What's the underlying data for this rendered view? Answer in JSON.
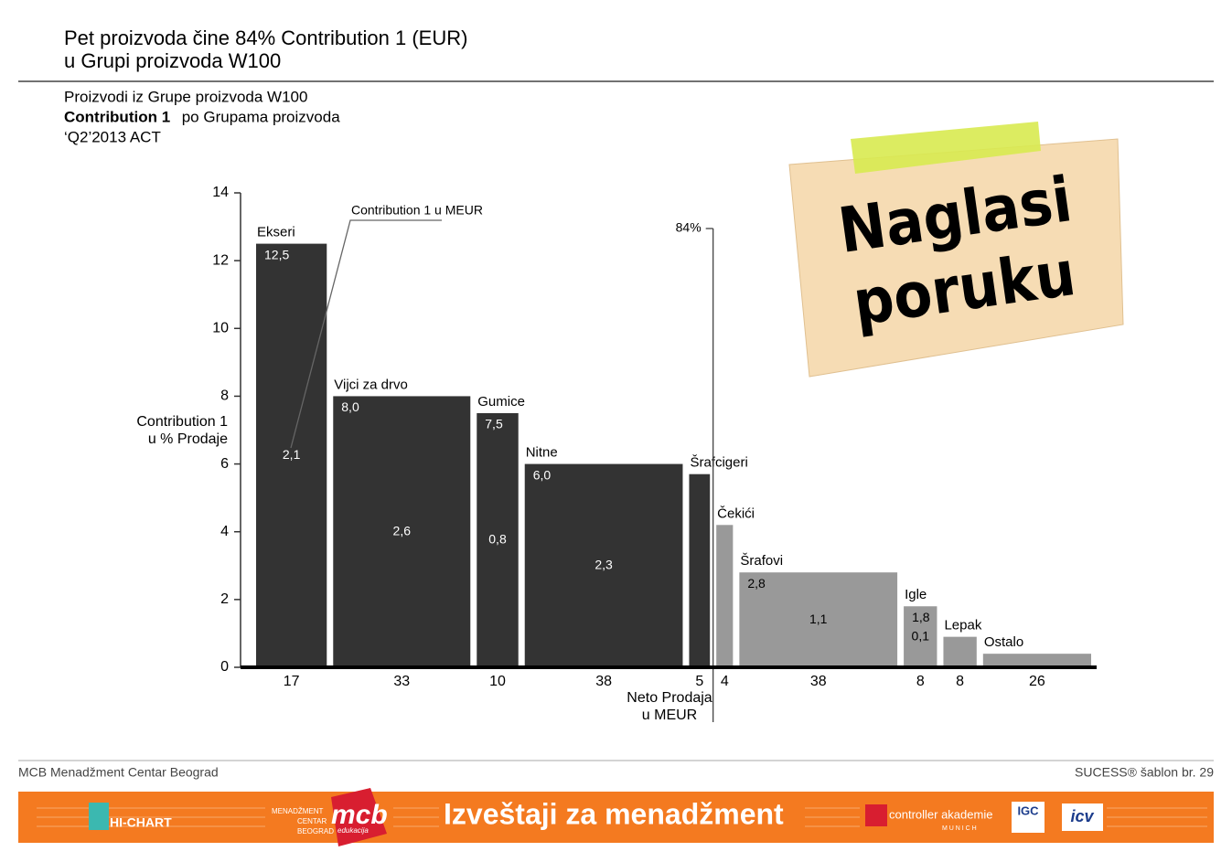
{
  "title_lines": [
    "Pet proizvoda čine 84% Contribution 1 (EUR)",
    "u Grupi proizvoda W100"
  ],
  "subtitle": {
    "line1": "Proizvodi iz Grupe proizvoda W100",
    "line2_bold": "Contribution 1",
    "line2_rest": " po Grupama proizvoda",
    "line3": "‘Q2’2013 ACT"
  },
  "note": [
    "Naglasi",
    "poruku"
  ],
  "footer": {
    "left": "MCB Menadžment Centar Beograd",
    "right": "SUCESS® šablon br. 29"
  },
  "banner": {
    "title": "Izveštaji za menadžment",
    "logo1": "HI-CHART",
    "logo2_small": [
      "MENADŽMENT",
      "CENTAR",
      "BEOGRAD"
    ],
    "logo2": "mcb",
    "logo2_sub": "edukacija",
    "logo3": "controller akademie",
    "logo3_sub": "M U N I C H",
    "logo4": "IGC",
    "logo5": "icv"
  },
  "chart_data": {
    "type": "mekko",
    "categories": [
      "Ekseri",
      "Vijci za drvo",
      "Gumice",
      "Nitne",
      "Šrafcigeri",
      "Čekići",
      "Šrafovi",
      "Igle",
      "Lepak",
      "Ostalo"
    ],
    "values": [
      12.5,
      8.0,
      7.5,
      6.0,
      5.7,
      4.2,
      2.8,
      1.8,
      0.9,
      0.4
    ],
    "value_labels": [
      "12,5",
      "8,0",
      "7,5",
      "6,0",
      null,
      null,
      "2,8",
      "1,8",
      null,
      null
    ],
    "widths": [
      17,
      33,
      10,
      38,
      5,
      4,
      38,
      8,
      8,
      26
    ],
    "contribution": [
      2.1,
      2.6,
      0.8,
      2.3,
      null,
      null,
      1.1,
      0.1,
      null,
      null
    ],
    "contribution_labels": [
      "2,1",
      "2,6",
      "0,8",
      "2,3",
      null,
      null,
      "1,1",
      "0,1",
      null,
      null
    ],
    "colors": [
      "#333333",
      "#333333",
      "#333333",
      "#333333",
      "#333333",
      "#999999",
      "#999999",
      "#999999",
      "#999999",
      "#999999"
    ],
    "ylim": [
      0,
      14
    ],
    "yticks": [
      0,
      2,
      4,
      6,
      8,
      10,
      12,
      14
    ],
    "y_label": [
      "Contribution 1",
      "u % Prodaje"
    ],
    "x_label": [
      "Neto Prodaja",
      "u MEUR"
    ],
    "share_annotation": "84%",
    "contribution_annotation": "Contribution 1 u MEUR"
  }
}
